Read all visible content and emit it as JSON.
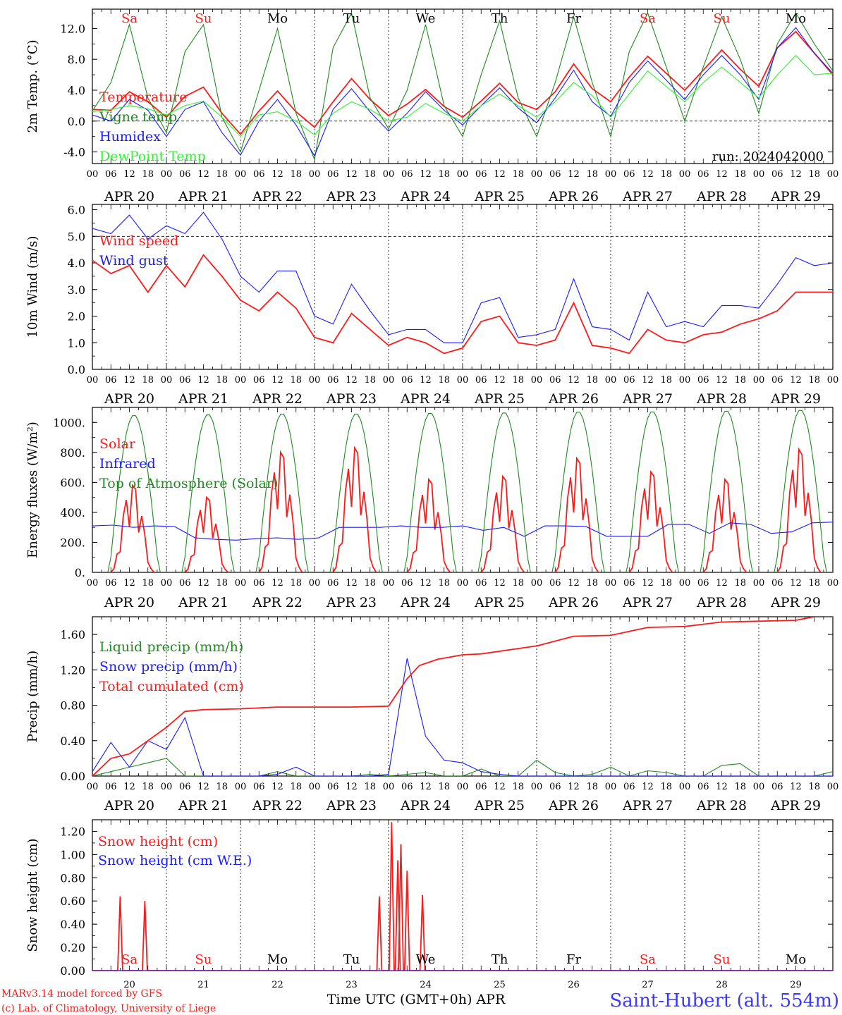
{
  "colors": {
    "red": "#ff1a1a",
    "darkgreen": "#1f8a1f",
    "blue": "#1a1aff",
    "lightgreen": "#2cf52c",
    "black": "#000000",
    "footerblue": "#3a3aff"
  },
  "day_abbr": [
    "Sa",
    "Su",
    "Mo",
    "Tu",
    "We",
    "Th",
    "Fr",
    "Sa",
    "Su",
    "Mo"
  ],
  "day_abbr_colors": [
    "#ff1a1a",
    "#ff1a1a",
    "#000000",
    "#000000",
    "#000000",
    "#000000",
    "#000000",
    "#ff1a1a",
    "#ff1a1a",
    "#000000"
  ],
  "day_labels": [
    "APR 20",
    "APR 21",
    "APR 22",
    "APR 23",
    "APR 24",
    "APR 25",
    "APR 26",
    "APR 27",
    "APR 28",
    "APR 29"
  ],
  "day_numbers": [
    "20",
    "21",
    "22",
    "23",
    "24",
    "25",
    "26",
    "27",
    "28",
    "29"
  ],
  "hour_ticks": [
    "00",
    "06",
    "12",
    "18"
  ],
  "last_tick": "00",
  "run_label": "run: 2024042000",
  "footer": {
    "model": "MARv3.14 model forced by GFS",
    "copyright": "(c) Lab. of Climatology, University of Liege",
    "xlabel": "Time UTC (GMT+0h) APR",
    "station": "Saint-Hubert (alt. 554m)"
  },
  "chart_data": [
    {
      "id": "temp",
      "type": "line",
      "ylabel": "2m Temp. (°C)",
      "ylim": [
        -5.5,
        14.5
      ],
      "yticks": [
        -4,
        0,
        4,
        8,
        12
      ],
      "ytick_labels": [
        "-4.0",
        "0.0",
        "4.0",
        "8.0",
        "12.0"
      ],
      "dashed_y": [
        0
      ],
      "x_hours": [
        0,
        6,
        12,
        18,
        24,
        30,
        36,
        42,
        48,
        54,
        60,
        66,
        72,
        78,
        84,
        90,
        96,
        102,
        108,
        114,
        120,
        126,
        132,
        138,
        144,
        150,
        156,
        162,
        168,
        174,
        180,
        186,
        192,
        198,
        204,
        210,
        216,
        222,
        228,
        234,
        240
      ],
      "series": [
        {
          "name": "Temperature",
          "color": "#ff1a1a",
          "values": [
            1.5,
            1.4,
            3.8,
            2.5,
            0.5,
            3.2,
            4.4,
            1.0,
            -1.7,
            1.3,
            3.9,
            1.2,
            -0.8,
            2.5,
            5.5,
            2.8,
            0.7,
            2.2,
            4.1,
            1.9,
            0.5,
            2.6,
            4.9,
            2.4,
            1.5,
            3.8,
            7.4,
            4.2,
            2.5,
            5.7,
            8.4,
            6.2,
            4.0,
            6.6,
            9.2,
            6.7,
            4.5,
            9.5,
            11.6,
            8.8,
            6.0
          ]
        },
        {
          "name": "Vigne temp",
          "color": "#1f8a1f",
          "values": [
            1.3,
            5.0,
            12.5,
            3.0,
            -1.5,
            9.0,
            12.5,
            0.5,
            -4.0,
            4.0,
            12.0,
            1.0,
            -5.0,
            9.5,
            14.0,
            3.0,
            -1.0,
            4.0,
            12.5,
            2.0,
            -2.0,
            6.0,
            13.0,
            3.0,
            -2.0,
            5.0,
            13.5,
            5.0,
            -2.0,
            9.0,
            14.0,
            7.0,
            0.0,
            7.0,
            13.5,
            8.0,
            1.0,
            10.0,
            14.0,
            10.0,
            6.5
          ]
        },
        {
          "name": "Humidex",
          "color": "#1a1aff",
          "values": [
            0.8,
            0.0,
            2.8,
            1.4,
            -2.0,
            1.5,
            2.5,
            -1.5,
            -4.4,
            0.0,
            2.8,
            -0.5,
            -4.5,
            1.5,
            4.2,
            1.2,
            -1.3,
            1.0,
            3.8,
            1.4,
            -0.5,
            2.0,
            4.3,
            1.7,
            -0.2,
            3.0,
            6.6,
            2.5,
            0.6,
            5.0,
            7.8,
            5.3,
            2.8,
            6.0,
            8.5,
            6.0,
            2.8,
            9.5,
            12.1,
            8.8,
            6.2
          ]
        },
        {
          "name": "DewPoint Temp",
          "color": "#2cf52c",
          "values": [
            1.2,
            1.5,
            2.0,
            1.6,
            0.8,
            2.0,
            2.6,
            0.5,
            -2.0,
            0.8,
            1.2,
            0.0,
            -1.8,
            1.0,
            2.5,
            1.5,
            0.0,
            0.5,
            2.3,
            1.0,
            0.0,
            2.0,
            3.5,
            2.0,
            0.5,
            2.5,
            5.0,
            3.3,
            0.5,
            3.5,
            6.5,
            4.5,
            2.5,
            5.0,
            7.0,
            5.0,
            3.0,
            6.0,
            8.5,
            6.0,
            6.2
          ]
        }
      ]
    },
    {
      "id": "wind",
      "type": "line",
      "ylabel": "10m Wind (m/s)",
      "ylim": [
        0,
        6.2
      ],
      "yticks": [
        0,
        1,
        2,
        3,
        4,
        5,
        6
      ],
      "ytick_labels": [
        "0.0",
        "1.0",
        "2.0",
        "3.0",
        "4.0",
        "5.0",
        "6.0"
      ],
      "dashed_y": [
        5
      ],
      "x_hours": [
        0,
        6,
        12,
        18,
        24,
        30,
        36,
        42,
        48,
        54,
        60,
        66,
        72,
        78,
        84,
        90,
        96,
        102,
        108,
        114,
        120,
        126,
        132,
        138,
        144,
        150,
        156,
        162,
        168,
        174,
        180,
        186,
        192,
        198,
        204,
        210,
        216,
        222,
        228,
        234,
        240
      ],
      "series": [
        {
          "name": "Wind speed",
          "color": "#ff1a1a",
          "values": [
            4.1,
            3.6,
            3.9,
            2.9,
            3.9,
            3.1,
            4.3,
            3.5,
            2.6,
            2.2,
            2.9,
            2.3,
            1.2,
            1.0,
            2.1,
            1.5,
            0.9,
            1.2,
            1.0,
            0.6,
            0.8,
            1.8,
            2.0,
            1.0,
            0.9,
            1.1,
            2.5,
            0.9,
            0.8,
            0.6,
            1.5,
            1.1,
            1.0,
            1.3,
            1.4,
            1.7,
            1.9,
            2.2,
            2.9,
            2.9,
            2.9
          ]
        },
        {
          "name": "Wind gust",
          "color": "#1a1aff",
          "values": [
            5.3,
            5.1,
            5.8,
            4.9,
            5.4,
            5.1,
            5.9,
            4.9,
            3.5,
            2.9,
            3.7,
            3.7,
            2.0,
            1.7,
            3.2,
            2.2,
            1.3,
            1.5,
            1.5,
            1.0,
            1.0,
            2.5,
            2.7,
            1.2,
            1.3,
            1.5,
            3.4,
            1.6,
            1.5,
            1.1,
            2.9,
            1.6,
            1.8,
            1.6,
            2.4,
            2.4,
            2.3,
            3.2,
            4.2,
            3.9,
            4.0
          ]
        }
      ]
    },
    {
      "id": "energy",
      "type": "line",
      "ylabel": "Energy fluxes (W/m²)",
      "ylim": [
        0,
        1100
      ],
      "yticks": [
        0,
        200,
        400,
        600,
        800,
        1000
      ],
      "ytick_labels": [
        "0.",
        "200.",
        "400.",
        "600.",
        "800.",
        "1000."
      ],
      "dashed_y": [],
      "series": [
        {
          "name": "Solar",
          "color": "#ff1a1a",
          "daily_peak": [
            580,
            500,
            800,
            830,
            620,
            640,
            760,
            670,
            620,
            820
          ]
        },
        {
          "name": "Infrared",
          "color": "#1a1aff",
          "values": [
            310,
            315,
            300,
            310,
            305,
            230,
            220,
            215,
            225,
            230,
            220,
            230,
            300,
            300,
            300,
            310,
            300,
            300,
            310,
            280,
            300,
            240,
            310,
            310,
            305,
            240,
            240,
            240,
            320,
            320,
            260,
            330,
            320,
            260,
            270,
            330,
            335
          ]
        },
        {
          "name": "Top of Atmosphere (Solar)",
          "color": "#1f8a1f",
          "daily_peak": [
            1050,
            1055,
            1060,
            1060,
            1065,
            1068,
            1073,
            1075,
            1080,
            1085
          ]
        }
      ]
    },
    {
      "id": "precip",
      "type": "line",
      "ylabel": "Precip (mm/h)",
      "ylim": [
        0,
        1.8
      ],
      "yticks": [
        0,
        0.4,
        0.8,
        1.2,
        1.6
      ],
      "ytick_labels": [
        "0.00",
        "0.40",
        "0.80",
        "1.20",
        "1.60"
      ],
      "dashed_y": [],
      "series": [
        {
          "name": "Liquid precip (mm/h)",
          "color": "#1f8a1f",
          "values": [
            0.0,
            0.05,
            0.1,
            0.15,
            0.2,
            0.0,
            0.0,
            0.0,
            0.0,
            0.0,
            0.05,
            0.0,
            0.0,
            0.0,
            0.0,
            0.02,
            0.0,
            0.02,
            0.04,
            0.0,
            0.0,
            0.08,
            0.0,
            0.0,
            0.18,
            0.04,
            0.0,
            0.02,
            0.1,
            0.0,
            0.06,
            0.04,
            0.0,
            0.0,
            0.12,
            0.14,
            0.0,
            0.0,
            0.0,
            0.0,
            0.05
          ]
        },
        {
          "name": "Snow precip (mm/h)",
          "color": "#1a1aff",
          "values": [
            0.05,
            0.38,
            0.1,
            0.4,
            0.3,
            0.66,
            0.0,
            0.0,
            0.0,
            0.0,
            0.02,
            0.1,
            0.0,
            0.0,
            0.0,
            0.0,
            0.02,
            1.33,
            0.45,
            0.18,
            0.15,
            0.05,
            0.02,
            0.0,
            0.0,
            0.0,
            0.0,
            0.0,
            0.0,
            0.0,
            0.0,
            0.0,
            0.0,
            0.0,
            0.0,
            0.0,
            0.0,
            0.0,
            0.0,
            0.0,
            0.0
          ]
        },
        {
          "name": "Total cumulated (cm)",
          "color": "#ff1a1a",
          "x_hours": [
            0,
            6,
            12,
            18,
            24,
            30,
            36,
            48,
            60,
            72,
            84,
            96,
            102,
            106,
            112,
            120,
            126,
            144,
            156,
            168,
            180,
            192,
            204,
            216,
            228,
            234,
            240
          ],
          "values": [
            0.0,
            0.2,
            0.25,
            0.4,
            0.55,
            0.73,
            0.75,
            0.76,
            0.78,
            0.78,
            0.78,
            0.79,
            1.1,
            1.25,
            1.32,
            1.37,
            1.38,
            1.47,
            1.58,
            1.59,
            1.68,
            1.69,
            1.74,
            1.75,
            1.76,
            1.8,
            1.8
          ]
        }
      ]
    },
    {
      "id": "snow",
      "type": "line",
      "ylabel": "Snow height (cm)",
      "ylim": [
        0,
        1.3
      ],
      "yticks": [
        0,
        0.2,
        0.4,
        0.6,
        0.8,
        1.0,
        1.2
      ],
      "ytick_labels": [
        "0.00",
        "0.20",
        "0.40",
        "0.60",
        "0.80",
        "1.00",
        "1.20"
      ],
      "dashed_y": [],
      "series": [
        {
          "name": "Snow height (cm)",
          "color": "#ff1a1a",
          "spikes": [
            [
              9,
              0.64
            ],
            [
              17,
              0.6
            ],
            [
              93,
              0.64
            ],
            [
              97,
              1.28
            ],
            [
              99,
              0.95
            ],
            [
              100,
              1.09
            ],
            [
              102,
              0.86
            ],
            [
              107,
              0.65
            ]
          ]
        },
        {
          "name": "Snow height (cm W.E.)",
          "color": "#1a1aff",
          "values": [
            0
          ]
        }
      ]
    }
  ]
}
